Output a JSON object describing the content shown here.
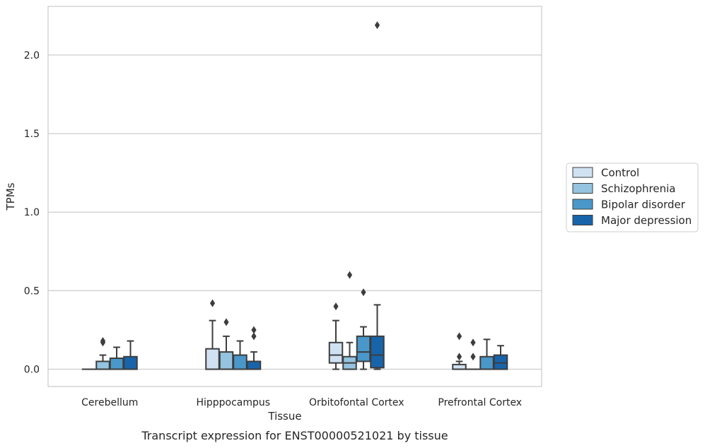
{
  "chart_data": {
    "type": "box",
    "xlabel": "Tissue",
    "ylabel": "TPMs",
    "caption": "Transcript expression for ENST00000521021 by tissue",
    "ylim": [
      -0.11,
      2.31
    ],
    "yticks": [
      0.0,
      0.5,
      1.0,
      1.5,
      2.0
    ],
    "ytick_labels": [
      "0.0",
      "0.5",
      "1.0",
      "1.5",
      "2.0"
    ],
    "grid": "horizontal",
    "legend_position": "right",
    "categories": [
      "Cerebellum",
      "Hipppocampus",
      "Orbitofontal Cortex",
      "Prefrontal Cortex"
    ],
    "series": [
      {
        "name": "Control",
        "color": "#d0e1f2",
        "boxes": [
          {
            "min": 0.0,
            "q1": 0.0,
            "median": 0.0,
            "q3": 0.0,
            "max": 0.0,
            "outliers": []
          },
          {
            "min": 0.0,
            "q1": 0.0,
            "median": 0.0,
            "q3": 0.13,
            "max": 0.31,
            "outliers": [
              0.42
            ]
          },
          {
            "min": 0.0,
            "q1": 0.04,
            "median": 0.09,
            "q3": 0.17,
            "max": 0.31,
            "outliers": [
              0.4
            ]
          },
          {
            "min": 0.0,
            "q1": 0.0,
            "median": 0.0,
            "q3": 0.03,
            "max": 0.05,
            "outliers": [
              0.08,
              0.21
            ]
          }
        ]
      },
      {
        "name": "Schizophrenia",
        "color": "#94c4df",
        "boxes": [
          {
            "min": 0.0,
            "q1": 0.0,
            "median": 0.0,
            "q3": 0.05,
            "max": 0.09,
            "outliers": [
              0.17,
              0.18
            ]
          },
          {
            "min": 0.0,
            "q1": 0.0,
            "median": 0.0,
            "q3": 0.11,
            "max": 0.21,
            "outliers": [
              0.3
            ]
          },
          {
            "min": 0.0,
            "q1": 0.0,
            "median": 0.04,
            "q3": 0.08,
            "max": 0.17,
            "outliers": [
              0.6
            ]
          },
          {
            "min": 0.0,
            "q1": 0.0,
            "median": 0.0,
            "q3": 0.0,
            "max": 0.0,
            "outliers": [
              0.08,
              0.17
            ]
          }
        ]
      },
      {
        "name": "Bipolar disorder",
        "color": "#4a98c9",
        "boxes": [
          {
            "min": 0.0,
            "q1": 0.0,
            "median": 0.0,
            "q3": 0.07,
            "max": 0.14,
            "outliers": []
          },
          {
            "min": 0.0,
            "q1": 0.0,
            "median": 0.0,
            "q3": 0.09,
            "max": 0.18,
            "outliers": []
          },
          {
            "min": 0.0,
            "q1": 0.05,
            "median": 0.11,
            "q3": 0.21,
            "max": 0.27,
            "outliers": [
              0.49
            ]
          },
          {
            "min": 0.0,
            "q1": 0.0,
            "median": 0.0,
            "q3": 0.08,
            "max": 0.19,
            "outliers": []
          }
        ]
      },
      {
        "name": "Major depression",
        "color": "#1764ab",
        "boxes": [
          {
            "min": 0.0,
            "q1": 0.0,
            "median": 0.0,
            "q3": 0.08,
            "max": 0.18,
            "outliers": []
          },
          {
            "min": 0.0,
            "q1": 0.0,
            "median": 0.0,
            "q3": 0.05,
            "max": 0.11,
            "outliers": [
              0.21,
              0.25
            ]
          },
          {
            "min": 0.0,
            "q1": 0.01,
            "median": 0.09,
            "q3": 0.21,
            "max": 0.41,
            "outliers": [
              2.19
            ]
          },
          {
            "min": 0.0,
            "q1": 0.0,
            "median": 0.04,
            "q3": 0.09,
            "max": 0.15,
            "outliers": []
          }
        ]
      }
    ]
  }
}
